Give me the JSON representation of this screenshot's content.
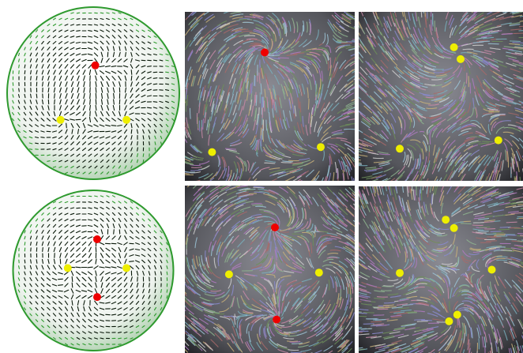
{
  "colors": {
    "sink": "#ee0000",
    "source": "#eeee00",
    "glyph": "#0a1a0a",
    "glyph_rim": "#2e9a2e",
    "background": "#ffffff"
  },
  "panels": [
    {
      "id": "sphere-top",
      "kind": "sphere-glyph-field",
      "singularities": [
        {
          "type": "sink",
          "u": 0.52,
          "v": 0.36
        },
        {
          "type": "source",
          "u": 0.33,
          "v": 0.66
        },
        {
          "type": "source",
          "u": 0.69,
          "v": 0.66
        }
      ]
    },
    {
      "id": "lic-top-left",
      "kind": "lic-texture",
      "singularities": [
        {
          "type": "sink",
          "u": 0.47,
          "v": 0.24
        },
        {
          "type": "source",
          "u": 0.16,
          "v": 0.83
        },
        {
          "type": "source",
          "u": 0.8,
          "v": 0.8
        }
      ]
    },
    {
      "id": "lic-top-right",
      "kind": "lic-texture",
      "singularities": [
        {
          "type": "source",
          "u": 0.58,
          "v": 0.21
        },
        {
          "type": "source",
          "u": 0.62,
          "v": 0.28
        },
        {
          "type": "source",
          "u": 0.25,
          "v": 0.81
        },
        {
          "type": "source",
          "u": 0.85,
          "v": 0.76
        }
      ]
    },
    {
      "id": "sphere-bottom",
      "kind": "sphere-glyph-field",
      "singularities": [
        {
          "type": "sink",
          "u": 0.53,
          "v": 0.33
        },
        {
          "type": "sink",
          "u": 0.53,
          "v": 0.67
        },
        {
          "type": "source",
          "u": 0.37,
          "v": 0.5
        },
        {
          "type": "source",
          "u": 0.69,
          "v": 0.5
        }
      ]
    },
    {
      "id": "lic-bottom-left",
      "kind": "lic-texture",
      "singularities": [
        {
          "type": "sink",
          "u": 0.53,
          "v": 0.25
        },
        {
          "type": "sink",
          "u": 0.54,
          "v": 0.8
        },
        {
          "type": "source",
          "u": 0.26,
          "v": 0.53
        },
        {
          "type": "source",
          "u": 0.79,
          "v": 0.52
        }
      ]
    },
    {
      "id": "lic-bottom-right",
      "kind": "lic-texture",
      "singularities": [
        {
          "type": "source",
          "u": 0.53,
          "v": 0.2
        },
        {
          "type": "source",
          "u": 0.58,
          "v": 0.25
        },
        {
          "type": "source",
          "u": 0.25,
          "v": 0.52
        },
        {
          "type": "source",
          "u": 0.81,
          "v": 0.5
        },
        {
          "type": "source",
          "u": 0.55,
          "v": 0.81
        },
        {
          "type": "source",
          "u": 0.6,
          "v": 0.77
        }
      ]
    }
  ]
}
